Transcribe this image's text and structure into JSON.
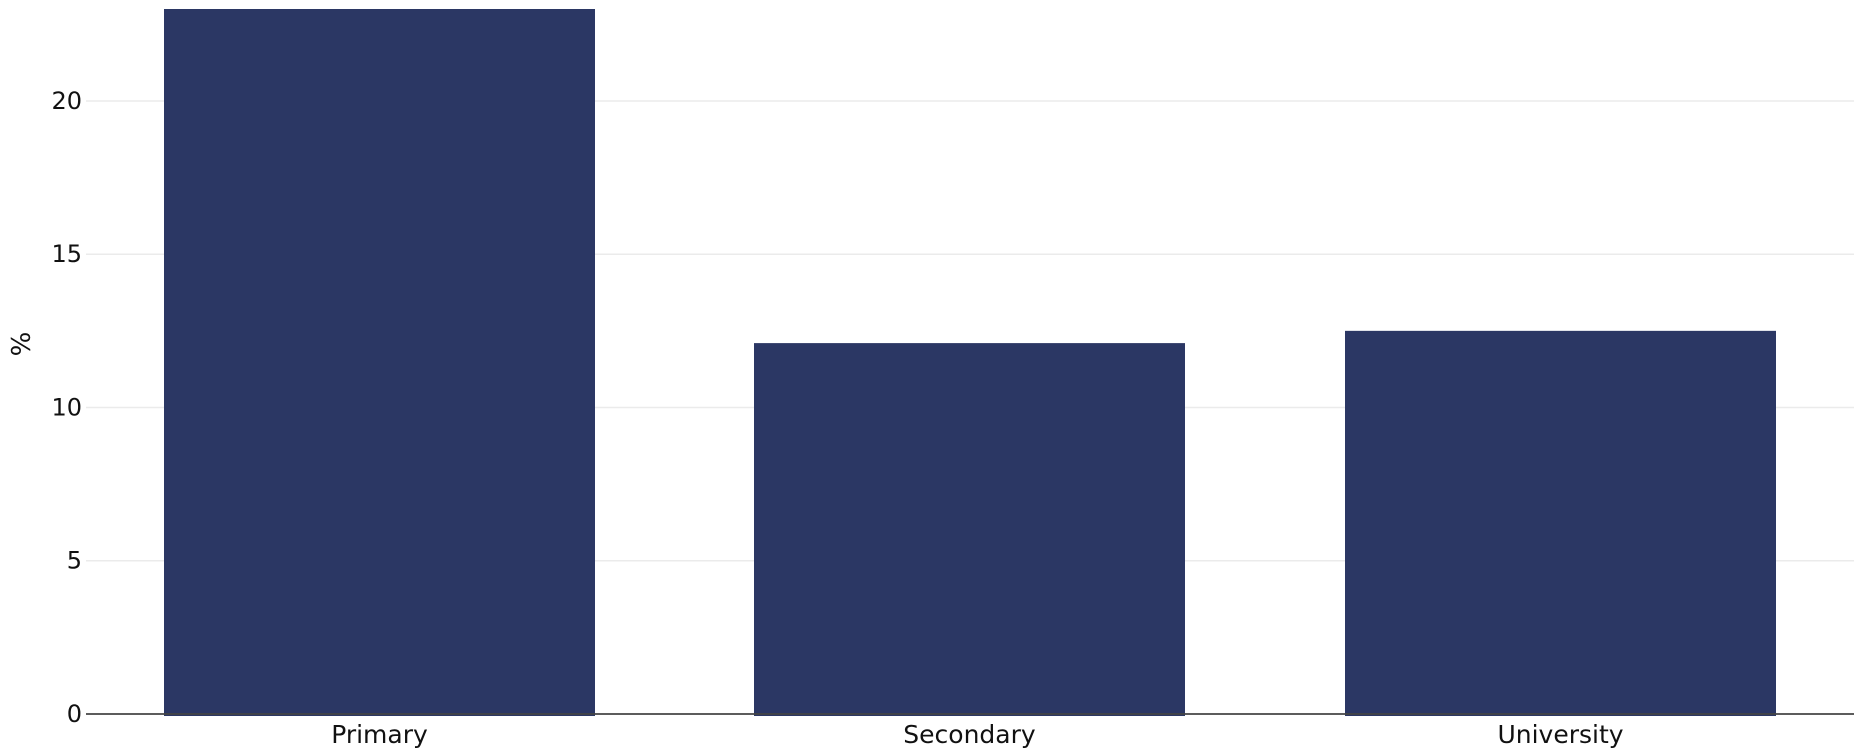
{
  "chart_data": {
    "type": "bar",
    "categories": [
      "Primary",
      "Secondary",
      "University"
    ],
    "values": [
      23.0,
      12.1,
      12.5
    ],
    "ylabel": "%",
    "ylim": [
      0,
      23
    ],
    "yticks": [
      0,
      5,
      10,
      15,
      20
    ],
    "grid": true,
    "bar_color": "#2b3764"
  }
}
